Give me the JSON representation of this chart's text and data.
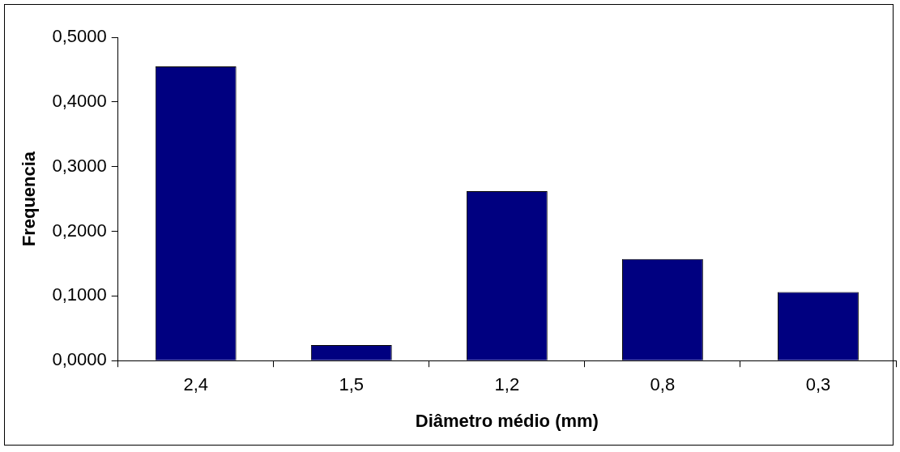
{
  "chart_data": {
    "type": "bar",
    "xlabel": "Diâmetro médio (mm)",
    "ylabel": "Frequencia",
    "categories": [
      "2,4",
      "1,5",
      "1,2",
      "0,8",
      "0,3"
    ],
    "values": [
      0.455,
      0.024,
      0.262,
      0.157,
      0.106
    ],
    "color": "#000080",
    "ylim": [
      0,
      0.5
    ],
    "yticks": [
      {
        "value": 0,
        "label": "0,0000"
      },
      {
        "value": 0.1,
        "label": "0,1000"
      },
      {
        "value": 0.2,
        "label": "0,2000"
      },
      {
        "value": 0.3,
        "label": "0,3000"
      },
      {
        "value": 0.4,
        "label": "0,4000"
      },
      {
        "value": 0.5,
        "label": "0,5000"
      }
    ],
    "grid": false
  }
}
